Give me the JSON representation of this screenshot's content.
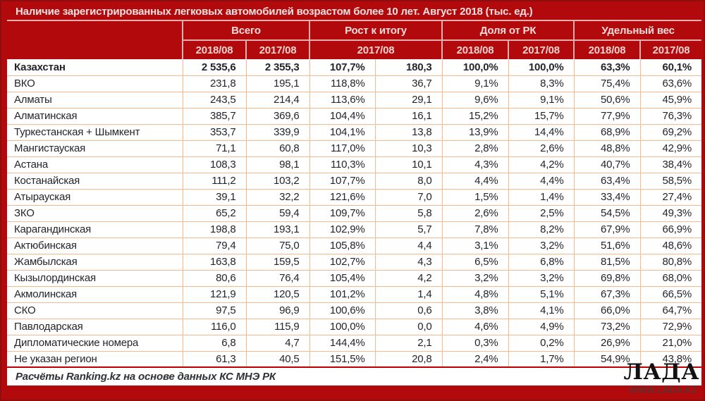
{
  "chart_data": {
    "type": "table",
    "title": "Наличие зарегистрированных легковых автомобилей возрастом более 10 лет. Август 2018 (тыс. ед.)",
    "header": {
      "groups": [
        "Всего",
        "Рост к итогу",
        "Доля от РК",
        "Удельный вес"
      ],
      "sub": [
        "2018/08",
        "2017/08",
        "2017/08",
        "2018/08",
        "2017/08",
        "2018/08",
        "2017/08"
      ]
    },
    "rows": [
      {
        "region": "Казахстан",
        "bold": true,
        "values": [
          "2 535,6",
          "2 355,3",
          "107,7%",
          "180,3",
          "100,0%",
          "100,0%",
          "63,3%",
          "60,1%"
        ]
      },
      {
        "region": "ВКО",
        "bold": false,
        "values": [
          "231,8",
          "195,1",
          "118,8%",
          "36,7",
          "9,1%",
          "8,3%",
          "75,4%",
          "63,6%"
        ]
      },
      {
        "region": "Алматы",
        "bold": false,
        "values": [
          "243,5",
          "214,4",
          "113,6%",
          "29,1",
          "9,6%",
          "9,1%",
          "50,6%",
          "45,9%"
        ]
      },
      {
        "region": "Алматинская",
        "bold": false,
        "values": [
          "385,7",
          "369,6",
          "104,4%",
          "16,1",
          "15,2%",
          "15,7%",
          "77,9%",
          "76,3%"
        ]
      },
      {
        "region": "Туркестанская + Шымкент",
        "bold": false,
        "values": [
          "353,7",
          "339,9",
          "104,1%",
          "13,8",
          "13,9%",
          "14,4%",
          "68,9%",
          "69,2%"
        ]
      },
      {
        "region": "Мангистауская",
        "bold": false,
        "values": [
          "71,1",
          "60,8",
          "117,0%",
          "10,3",
          "2,8%",
          "2,6%",
          "48,8%",
          "42,9%"
        ]
      },
      {
        "region": "Астана",
        "bold": false,
        "values": [
          "108,3",
          "98,1",
          "110,3%",
          "10,1",
          "4,3%",
          "4,2%",
          "40,7%",
          "38,4%"
        ]
      },
      {
        "region": "Костанайская",
        "bold": false,
        "values": [
          "111,2",
          "103,2",
          "107,7%",
          "8,0",
          "4,4%",
          "4,4%",
          "63,4%",
          "58,5%"
        ]
      },
      {
        "region": "Атырауская",
        "bold": false,
        "values": [
          "39,1",
          "32,2",
          "121,6%",
          "7,0",
          "1,5%",
          "1,4%",
          "33,4%",
          "27,4%"
        ]
      },
      {
        "region": "ЗКО",
        "bold": false,
        "values": [
          "65,2",
          "59,4",
          "109,7%",
          "5,8",
          "2,6%",
          "2,5%",
          "54,5%",
          "49,3%"
        ]
      },
      {
        "region": "Карагандинская",
        "bold": false,
        "values": [
          "198,8",
          "193,1",
          "102,9%",
          "5,7",
          "7,8%",
          "8,2%",
          "67,9%",
          "66,9%"
        ]
      },
      {
        "region": "Актюбинская",
        "bold": false,
        "values": [
          "79,4",
          "75,0",
          "105,8%",
          "4,4",
          "3,1%",
          "3,2%",
          "51,6%",
          "48,6%"
        ]
      },
      {
        "region": "Жамбылская",
        "bold": false,
        "values": [
          "163,8",
          "159,5",
          "102,7%",
          "4,3",
          "6,5%",
          "6,8%",
          "81,5%",
          "80,8%"
        ]
      },
      {
        "region": "Кызылординская",
        "bold": false,
        "values": [
          "80,6",
          "76,4",
          "105,4%",
          "4,2",
          "3,2%",
          "3,2%",
          "69,8%",
          "68,0%"
        ]
      },
      {
        "region": "Акмолинская",
        "bold": false,
        "values": [
          "121,9",
          "120,5",
          "101,2%",
          "1,4",
          "4,8%",
          "5,1%",
          "67,3%",
          "66,5%"
        ]
      },
      {
        "region": "СКО",
        "bold": false,
        "values": [
          "97,5",
          "96,9",
          "100,6%",
          "0,6",
          "3,8%",
          "4,1%",
          "66,0%",
          "64,7%"
        ]
      },
      {
        "region": "Павлодарская",
        "bold": false,
        "values": [
          "116,0",
          "115,9",
          "100,0%",
          "0,0",
          "4,6%",
          "4,9%",
          "73,2%",
          "72,9%"
        ]
      },
      {
        "region": "Дипломатические номера",
        "bold": false,
        "values": [
          "6,8",
          "4,7",
          "144,4%",
          "2,1",
          "0,3%",
          "0,2%",
          "26,9%",
          "21,0%"
        ]
      },
      {
        "region": "Не указан регион",
        "bold": false,
        "values": [
          "61,3",
          "40,5",
          "151,5%",
          "20,8",
          "2,4%",
          "1,7%",
          "54,9%",
          "43,8%"
        ]
      }
    ],
    "footer": "Расчёты Ranking.kz на основе данных КС МНЭ РК"
  },
  "watermark": {
    "logo_text": "ЛАДА",
    "site_text": "WWW.LADA.KZ"
  },
  "colors": {
    "header_bg": "#B20A0C",
    "header_text": "#F4DCDA",
    "grid": "#F5B98C",
    "footer_rule": "#C00000",
    "body_text": "#23252B"
  }
}
